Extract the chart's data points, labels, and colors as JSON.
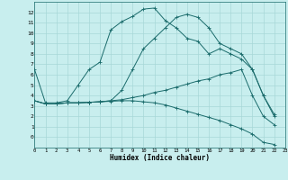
{
  "xlabel": "Humidex (Indice chaleur)",
  "bg_color": "#c8eeee",
  "grid_color": "#a8d8d8",
  "line_color": "#1a6b6b",
  "xlim": [
    0,
    23
  ],
  "ylim": [
    -1,
    13
  ],
  "xticks": [
    0,
    1,
    2,
    3,
    4,
    5,
    6,
    7,
    8,
    9,
    10,
    11,
    12,
    13,
    14,
    15,
    16,
    17,
    18,
    19,
    20,
    21,
    22,
    23
  ],
  "yticks": [
    0,
    1,
    2,
    3,
    4,
    5,
    6,
    7,
    8,
    9,
    10,
    11,
    12
  ],
  "series": [
    {
      "x": [
        0,
        1,
        2,
        3,
        4,
        5,
        6,
        7,
        8,
        9,
        10,
        11,
        12,
        13,
        14,
        15,
        16,
        17,
        18,
        19,
        20,
        21,
        22
      ],
      "y": [
        6.5,
        3.3,
        3.3,
        3.5,
        5.0,
        6.5,
        7.2,
        10.3,
        11.1,
        11.6,
        12.3,
        12.4,
        11.2,
        10.5,
        9.5,
        9.2,
        8.0,
        8.5,
        8.0,
        7.5,
        6.5,
        4.0,
        2.0
      ]
    },
    {
      "x": [
        0,
        1,
        2,
        3,
        4,
        5,
        6,
        7,
        8,
        9,
        10,
        11,
        12,
        13,
        14,
        15,
        16,
        17,
        18,
        19,
        20,
        21,
        22
      ],
      "y": [
        3.5,
        3.2,
        3.2,
        3.3,
        3.3,
        3.35,
        3.4,
        3.5,
        4.5,
        6.5,
        8.5,
        9.5,
        10.5,
        11.5,
        11.8,
        11.5,
        10.5,
        9.0,
        8.5,
        8.0,
        6.5,
        4.0,
        2.2
      ]
    },
    {
      "x": [
        0,
        1,
        2,
        3,
        4,
        5,
        6,
        7,
        8,
        9,
        10,
        11,
        12,
        13,
        14,
        15,
        16,
        17,
        18,
        19,
        20,
        21,
        22
      ],
      "y": [
        3.5,
        3.2,
        3.2,
        3.3,
        3.3,
        3.35,
        3.4,
        3.5,
        3.6,
        3.8,
        4.0,
        4.3,
        4.5,
        4.8,
        5.1,
        5.4,
        5.6,
        6.0,
        6.2,
        6.5,
        4.0,
        2.0,
        1.2
      ]
    },
    {
      "x": [
        0,
        1,
        2,
        3,
        4,
        5,
        6,
        7,
        8,
        9,
        10,
        11,
        12,
        13,
        14,
        15,
        16,
        17,
        18,
        19,
        20,
        21,
        22
      ],
      "y": [
        3.5,
        3.2,
        3.2,
        3.3,
        3.3,
        3.35,
        3.4,
        3.45,
        3.5,
        3.5,
        3.4,
        3.3,
        3.1,
        2.8,
        2.5,
        2.2,
        1.9,
        1.6,
        1.2,
        0.8,
        0.3,
        -0.5,
        -0.7
      ]
    }
  ]
}
